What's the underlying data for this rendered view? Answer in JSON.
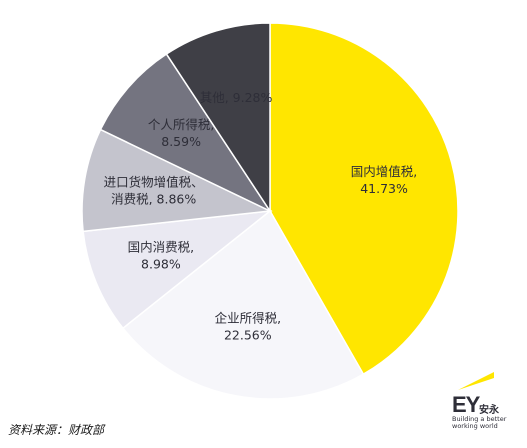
{
  "chart_data": {
    "type": "pie",
    "start_angle_deg": 0,
    "direction": "clockwise",
    "slices": [
      {
        "label": "国内增值税",
        "value": 41.73,
        "display": "41.73%",
        "color": "#ffe600",
        "text_color": "#2e2e38",
        "label_lines": [
          "国内增值税,",
          "41.73%"
        ]
      },
      {
        "label": "企业所得税",
        "value": 22.56,
        "display": "22.56%",
        "color": "#f6f6fa",
        "text_color": "#2e2e38",
        "label_lines": [
          "企业所得税,",
          "22.56%"
        ]
      },
      {
        "label": "国内消费税",
        "value": 8.98,
        "display": "8.98%",
        "color": "#eae9f2",
        "text_color": "#2e2e38",
        "label_lines": [
          "国内消费税,",
          "8.98%"
        ]
      },
      {
        "label": "进口货物增值税、消费税",
        "value": 8.86,
        "display": "8.86%",
        "color": "#c4c4cd",
        "text_color": "#2e2e38",
        "label_lines": [
          "进口货物增值税、",
          "消费税, 8.86%"
        ]
      },
      {
        "label": "个人所得税",
        "value": 8.59,
        "display": "8.59%",
        "color": "#747480",
        "text_color": "#2e2e38",
        "label_lines": [
          "个人所得税,",
          "8.59%"
        ]
      },
      {
        "label": "其他",
        "value": 9.28,
        "display": "9.28%",
        "color": "#3f3f46",
        "text_color": "#2e2e38",
        "label_lines": [
          "其他, 9.28%"
        ]
      }
    ]
  },
  "source": "资料来源：财政部",
  "logo": {
    "mark": "EY",
    "name_cn": "安永",
    "tagline_1": "Building a better",
    "tagline_2": "working world",
    "beam_color": "#ffe600"
  }
}
